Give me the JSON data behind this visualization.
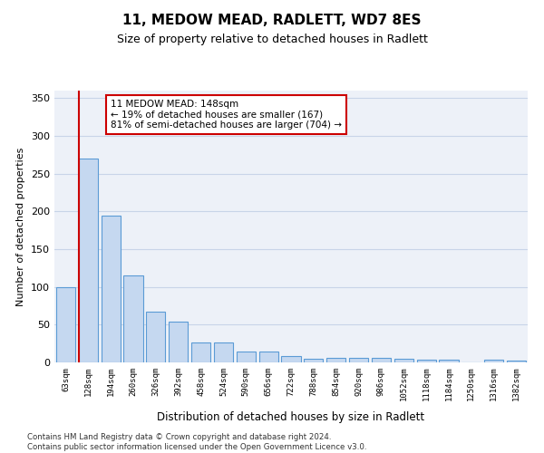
{
  "title": "11, MEDOW MEAD, RADLETT, WD7 8ES",
  "subtitle": "Size of property relative to detached houses in Radlett",
  "xlabel": "Distribution of detached houses by size in Radlett",
  "ylabel": "Number of detached properties",
  "categories": [
    "63sqm",
    "128sqm",
    "194sqm",
    "260sqm",
    "326sqm",
    "392sqm",
    "458sqm",
    "524sqm",
    "590sqm",
    "656sqm",
    "722sqm",
    "788sqm",
    "854sqm",
    "920sqm",
    "986sqm",
    "1052sqm",
    "1118sqm",
    "1184sqm",
    "1250sqm",
    "1316sqm",
    "1382sqm"
  ],
  "values": [
    100,
    270,
    195,
    115,
    67,
    54,
    27,
    27,
    15,
    15,
    9,
    5,
    6,
    6,
    6,
    5,
    4,
    4,
    0,
    4,
    3
  ],
  "bar_color": "#c5d8f0",
  "bar_edge_color": "#5b9bd5",
  "vline_index": 1,
  "vline_color": "#cc0000",
  "annotation_line1": "11 MEDOW MEAD: 148sqm",
  "annotation_line2": "← 19% of detached houses are smaller (167)",
  "annotation_line3": "81% of semi-detached houses are larger (704) →",
  "annotation_box_edgecolor": "#cc0000",
  "ylim": [
    0,
    360
  ],
  "yticks": [
    0,
    50,
    100,
    150,
    200,
    250,
    300,
    350
  ],
  "grid_color": "#c8d4e8",
  "axes_bg_color": "#edf1f8",
  "footnote_line1": "Contains HM Land Registry data © Crown copyright and database right 2024.",
  "footnote_line2": "Contains public sector information licensed under the Open Government Licence v3.0."
}
